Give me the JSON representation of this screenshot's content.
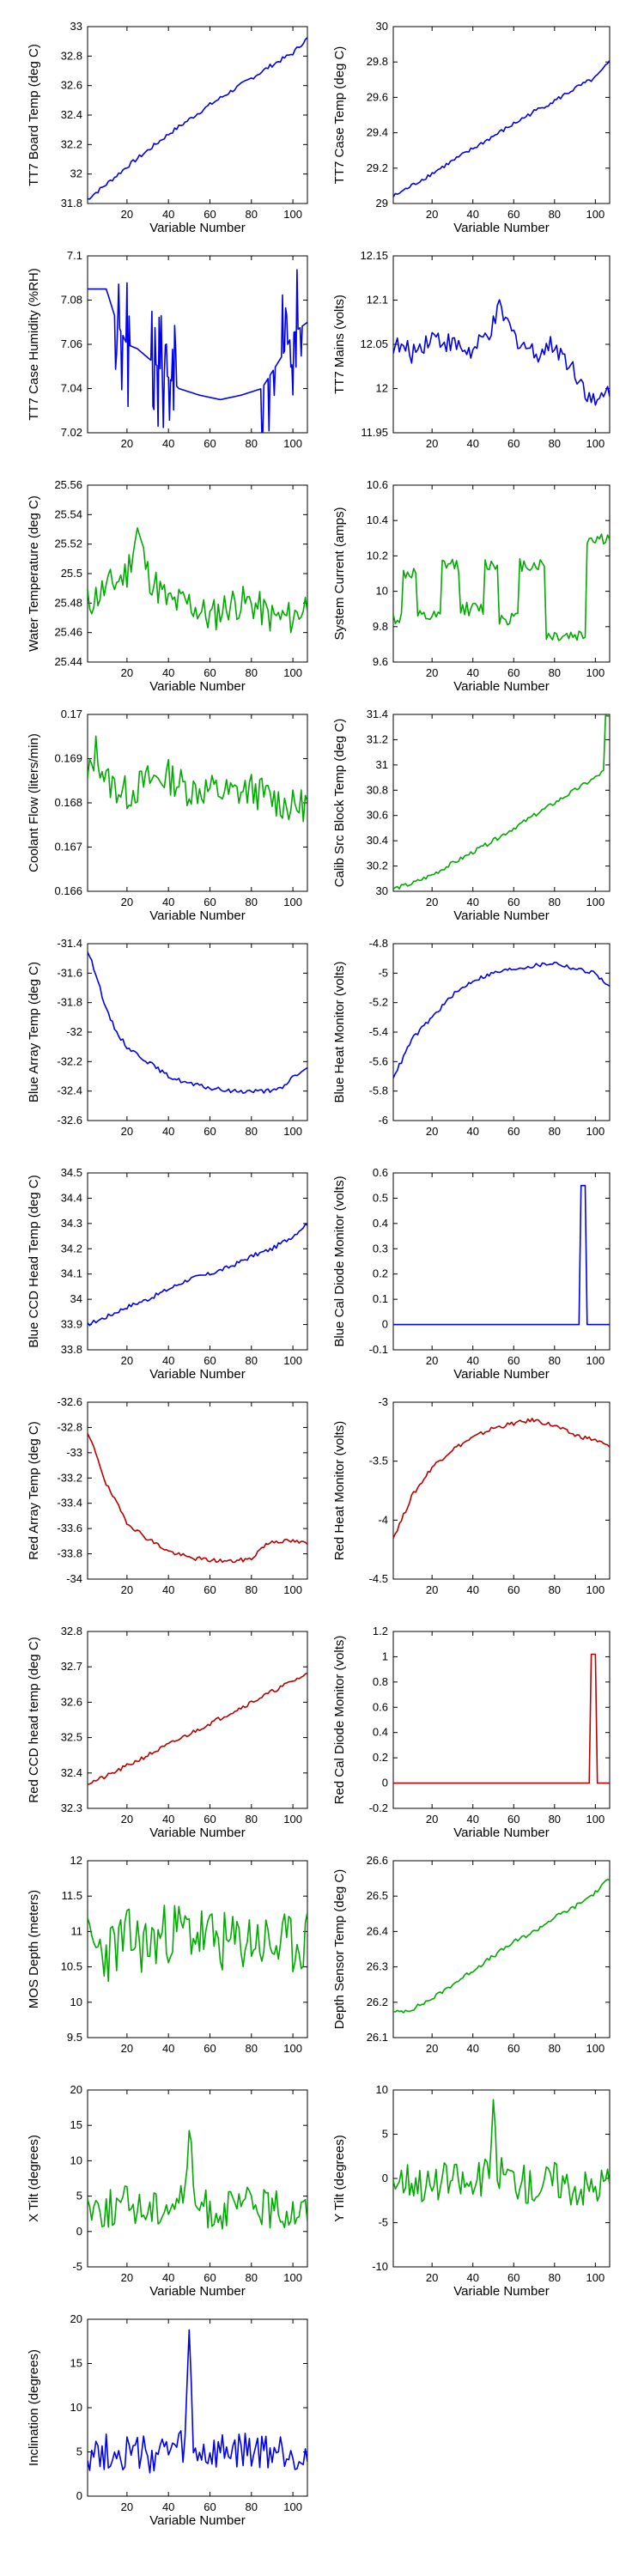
{
  "colors": {
    "blue": "#0000ee",
    "green": "#00aa00",
    "red": "#bb0000"
  },
  "chart_data": [
    {
      "type": "line",
      "xlabel": "Variable Number",
      "ylabel": "TT7 Board Temp (deg C)",
      "xlim": [
        1,
        107
      ],
      "ylim": [
        31.8,
        33
      ],
      "xticks": [
        20,
        40,
        60,
        80,
        100
      ],
      "yticks": [
        31.8,
        32,
        32.2,
        32.4,
        32.6,
        32.8,
        33
      ],
      "color": "blue",
      "grid": false,
      "shape": "trend",
      "x": [
        1,
        10,
        20,
        30,
        40,
        50,
        60,
        70,
        80,
        90,
        100,
        104,
        107
      ],
      "y": [
        31.83,
        31.93,
        32.05,
        32.16,
        32.27,
        32.37,
        32.47,
        32.56,
        32.65,
        32.74,
        32.82,
        32.88,
        32.92
      ]
    },
    {
      "type": "line",
      "xlabel": "Variable Number",
      "ylabel": "TT7 Case Temp (deg C)",
      "xlim": [
        1,
        107
      ],
      "ylim": [
        29,
        30
      ],
      "xticks": [
        20,
        40,
        60,
        80,
        100
      ],
      "yticks": [
        29,
        29.2,
        29.4,
        29.6,
        29.8,
        30
      ],
      "color": "blue",
      "grid": false,
      "shape": "trend",
      "x": [
        1,
        10,
        20,
        30,
        40,
        50,
        60,
        70,
        80,
        90,
        100,
        104,
        107
      ],
      "y": [
        29.04,
        29.1,
        29.17,
        29.24,
        29.31,
        29.38,
        29.45,
        29.52,
        29.58,
        29.65,
        29.71,
        29.76,
        29.8
      ]
    },
    {
      "type": "line",
      "xlabel": "",
      "ylabel": "TT7 Case Humidity (%RH)",
      "xlim": [
        1,
        107
      ],
      "ylim": [
        7.02,
        7.1
      ],
      "xticks": [
        20,
        40,
        60,
        80,
        100
      ],
      "yticks": [
        7.02,
        7.04,
        7.06,
        7.08,
        7.1
      ],
      "color": "blue",
      "grid": false,
      "shape": "humidity",
      "x": [
        1,
        10,
        15,
        20,
        25,
        35,
        45,
        55,
        65,
        75,
        85,
        95,
        100,
        107
      ],
      "y": [
        7.085,
        7.085,
        7.07,
        7.06,
        7.058,
        7.05,
        7.04,
        7.037,
        7.035,
        7.037,
        7.04,
        7.055,
        7.065,
        7.07
      ]
    },
    {
      "type": "line",
      "xlabel": "",
      "ylabel": "TT7 Mains  (volts)",
      "xlim": [
        1,
        107
      ],
      "ylim": [
        11.95,
        12.15
      ],
      "xticks": [
        20,
        40,
        60,
        80,
        100
      ],
      "yticks": [
        11.95,
        12,
        12.05,
        12.1,
        12.15
      ],
      "color": "blue",
      "grid": false,
      "shape": "noise",
      "x": [
        1,
        10,
        20,
        30,
        40,
        50,
        53,
        60,
        70,
        80,
        90,
        100,
        107
      ],
      "y": [
        12.05,
        12.04,
        12.06,
        12.05,
        12.04,
        12.07,
        12.09,
        12.06,
        12.04,
        12.05,
        12.02,
        11.98,
        12.0
      ],
      "noise": 0.012
    },
    {
      "type": "line",
      "xlabel": "Variable Number",
      "ylabel": "Water Temperature (deg C)",
      "xlim": [
        1,
        107
      ],
      "ylim": [
        25.44,
        25.56
      ],
      "xticks": [
        20,
        40,
        60,
        80,
        100
      ],
      "yticks": [
        25.44,
        25.46,
        25.48,
        25.5,
        25.52,
        25.54,
        25.56
      ],
      "color": "green",
      "grid": false,
      "shape": "noise",
      "x": [
        1,
        10,
        20,
        25,
        30,
        40,
        50,
        60,
        70,
        80,
        90,
        100,
        107
      ],
      "y": [
        25.48,
        25.49,
        25.5,
        25.53,
        25.5,
        25.48,
        25.48,
        25.47,
        25.48,
        25.48,
        25.47,
        25.47,
        25.48
      ],
      "noise": 0.012
    },
    {
      "type": "line",
      "xlabel": "Variable Number",
      "ylabel": "System Current (amps)",
      "xlim": [
        1,
        107
      ],
      "ylim": [
        9.6,
        10.6
      ],
      "xticks": [
        20,
        40,
        60,
        80,
        100
      ],
      "yticks": [
        9.6,
        9.8,
        10,
        10.2,
        10.4,
        10.6
      ],
      "color": "green",
      "grid": false,
      "shape": "square",
      "x": [
        1,
        5,
        6,
        12,
        13,
        24,
        25,
        33,
        34,
        45,
        46,
        52,
        53,
        62,
        63,
        75,
        76,
        95,
        96,
        107
      ],
      "y": [
        9.85,
        9.85,
        10.1,
        10.1,
        9.85,
        9.85,
        10.15,
        10.15,
        9.9,
        9.9,
        10.15,
        10.15,
        9.85,
        9.85,
        10.15,
        10.15,
        9.75,
        9.75,
        10.3,
        10.3
      ],
      "noise": 0.04
    },
    {
      "type": "line",
      "xlabel": "Variable Number",
      "ylabel": "Coolant Flow (liters/min)",
      "xlim": [
        1,
        107
      ],
      "ylim": [
        0.166,
        0.17
      ],
      "xticks": [
        20,
        40,
        60,
        80,
        100
      ],
      "yticks": [
        0.166,
        0.167,
        0.168,
        0.169,
        0.17
      ],
      "color": "green",
      "grid": false,
      "shape": "noise",
      "x": [
        1,
        5,
        10,
        20,
        30,
        40,
        50,
        60,
        70,
        80,
        90,
        100,
        107
      ],
      "y": [
        0.1685,
        0.1692,
        0.1685,
        0.1682,
        0.1685,
        0.1686,
        0.1683,
        0.1683,
        0.1682,
        0.1683,
        0.1681,
        0.1679,
        0.168
      ],
      "noise": 0.0004
    },
    {
      "type": "line",
      "xlabel": "Variable Number",
      "ylabel": "Calib Src Block Temp (deg C)",
      "xlim": [
        1,
        107
      ],
      "ylim": [
        30,
        31.4
      ],
      "xticks": [
        20,
        40,
        60,
        80,
        100
      ],
      "yticks": [
        30,
        30.2,
        30.4,
        30.6,
        30.8,
        31,
        31.2,
        31.4
      ],
      "color": "green",
      "grid": false,
      "shape": "trend",
      "x": [
        1,
        10,
        20,
        30,
        40,
        50,
        60,
        70,
        80,
        90,
        100,
        104,
        105,
        107
      ],
      "y": [
        30.02,
        30.06,
        30.13,
        30.22,
        30.31,
        30.4,
        30.5,
        30.6,
        30.7,
        30.8,
        30.9,
        30.95,
        31.38,
        31.38
      ]
    },
    {
      "type": "line",
      "xlabel": "",
      "ylabel": "Blue Array Temp (deg C)",
      "xlim": [
        1,
        107
      ],
      "ylim": [
        -32.6,
        -31.4
      ],
      "xticks": [
        20,
        40,
        60,
        80,
        100
      ],
      "yticks": [
        -32.6,
        -32.4,
        -32.2,
        -32,
        -31.8,
        -31.6,
        -31.4
      ],
      "color": "blue",
      "grid": false,
      "shape": "trend",
      "x": [
        1,
        5,
        10,
        15,
        20,
        25,
        30,
        40,
        50,
        60,
        70,
        80,
        90,
        95,
        100,
        107
      ],
      "y": [
        -31.45,
        -31.6,
        -31.85,
        -32.0,
        -32.1,
        -32.15,
        -32.2,
        -32.3,
        -32.35,
        -32.38,
        -32.4,
        -32.4,
        -32.4,
        -32.38,
        -32.3,
        -32.25
      ]
    },
    {
      "type": "line",
      "xlabel": "",
      "ylabel": "Blue Heat Monitor (volts)",
      "xlim": [
        1,
        107
      ],
      "ylim": [
        -6,
        -4.8
      ],
      "xticks": [
        20,
        40,
        60,
        80,
        100
      ],
      "yticks": [
        -6,
        -5.8,
        -5.6,
        -5.4,
        -5.2,
        -5,
        -4.8
      ],
      "color": "blue",
      "grid": false,
      "shape": "trend",
      "x": [
        1,
        5,
        10,
        20,
        30,
        40,
        50,
        60,
        70,
        80,
        90,
        100,
        107
      ],
      "y": [
        -5.7,
        -5.6,
        -5.45,
        -5.3,
        -5.15,
        -5.05,
        -5.0,
        -4.97,
        -4.95,
        -4.93,
        -4.97,
        -5.0,
        -5.1
      ]
    },
    {
      "type": "line",
      "xlabel": "Variable Number",
      "ylabel": "Blue CCD Head Temp (deg C)",
      "xlim": [
        1,
        107
      ],
      "ylim": [
        33.8,
        34.5
      ],
      "xticks": [
        20,
        40,
        60,
        80,
        100
      ],
      "yticks": [
        33.8,
        33.9,
        34,
        34.1,
        34.2,
        34.3,
        34.4,
        34.5
      ],
      "color": "blue",
      "grid": false,
      "shape": "trend",
      "x": [
        1,
        10,
        20,
        30,
        40,
        50,
        60,
        70,
        80,
        90,
        100,
        104,
        107
      ],
      "y": [
        33.9,
        33.93,
        33.97,
        34.0,
        34.04,
        34.08,
        34.1,
        34.13,
        34.17,
        34.2,
        34.25,
        34.28,
        34.3
      ]
    },
    {
      "type": "line",
      "xlabel": "Variable Number",
      "ylabel": "Blue Cal Diode Monitor (volts)",
      "xlim": [
        1,
        107
      ],
      "ylim": [
        -0.1,
        0.6
      ],
      "xticks": [
        20,
        40,
        60,
        80,
        100
      ],
      "yticks": [
        -0.1,
        0,
        0.1,
        0.2,
        0.3,
        0.4,
        0.5,
        0.6
      ],
      "color": "blue",
      "grid": false,
      "shape": "spike",
      "x": [
        1,
        92,
        93,
        95,
        96,
        107
      ],
      "y": [
        0,
        0,
        0.55,
        0.55,
        0,
        0
      ]
    },
    {
      "type": "line",
      "xlabel": "",
      "ylabel": "Red Array Temp (deg C)",
      "xlim": [
        1,
        107
      ],
      "ylim": [
        -34,
        -32.6
      ],
      "xticks": [
        20,
        40,
        60,
        80,
        100
      ],
      "yticks": [
        -34,
        -33.8,
        -33.6,
        -33.4,
        -33.2,
        -33,
        -32.8,
        -32.6
      ],
      "color": "red",
      "grid": false,
      "shape": "trend",
      "x": [
        1,
        5,
        10,
        15,
        20,
        25,
        30,
        40,
        50,
        60,
        70,
        80,
        85,
        90,
        100,
        107
      ],
      "y": [
        -32.85,
        -33.0,
        -33.25,
        -33.4,
        -33.55,
        -33.62,
        -33.68,
        -33.78,
        -33.83,
        -33.85,
        -33.86,
        -33.84,
        -33.75,
        -33.7,
        -33.7,
        -33.72
      ]
    },
    {
      "type": "line",
      "xlabel": "",
      "ylabel": "Red Heat Monitor (volts)",
      "xlim": [
        1,
        107
      ],
      "ylim": [
        -4.5,
        -3
      ],
      "xticks": [
        20,
        40,
        60,
        80,
        100
      ],
      "yticks": [
        -4.5,
        -4,
        -3.5,
        -3
      ],
      "color": "red",
      "grid": false,
      "shape": "trend",
      "x": [
        1,
        5,
        10,
        20,
        30,
        40,
        50,
        60,
        70,
        80,
        90,
        100,
        107
      ],
      "y": [
        -4.15,
        -4.0,
        -3.8,
        -3.55,
        -3.4,
        -3.3,
        -3.22,
        -3.18,
        -3.15,
        -3.2,
        -3.28,
        -3.32,
        -3.38
      ]
    },
    {
      "type": "line",
      "xlabel": "Variable Number",
      "ylabel": "Red CCD head temp (deg C)",
      "xlim": [
        1,
        107
      ],
      "ylim": [
        32.3,
        32.8
      ],
      "xticks": [
        20,
        40,
        60,
        80,
        100
      ],
      "yticks": [
        32.3,
        32.4,
        32.5,
        32.6,
        32.7,
        32.8
      ],
      "color": "red",
      "grid": false,
      "shape": "trend",
      "x": [
        1,
        10,
        20,
        30,
        40,
        50,
        60,
        70,
        80,
        90,
        100,
        107
      ],
      "y": [
        32.37,
        32.39,
        32.42,
        32.45,
        32.48,
        32.51,
        32.54,
        32.57,
        32.6,
        32.63,
        32.66,
        32.68
      ]
    },
    {
      "type": "line",
      "xlabel": "Variable Number",
      "ylabel": "Red Cal Diode Monitor (volts)",
      "xlim": [
        1,
        107
      ],
      "ylim": [
        -0.2,
        1.2
      ],
      "xticks": [
        20,
        40,
        60,
        80,
        100
      ],
      "yticks": [
        -0.2,
        0,
        0.2,
        0.4,
        0.6,
        0.8,
        1,
        1.2
      ],
      "color": "red",
      "grid": false,
      "shape": "spike",
      "x": [
        1,
        97,
        98,
        100,
        101,
        107
      ],
      "y": [
        0,
        0,
        1.02,
        1.02,
        0,
        0
      ]
    },
    {
      "type": "line",
      "xlabel": "",
      "ylabel": "MOS Depth  (meters)",
      "xlim": [
        1,
        107
      ],
      "ylim": [
        9.5,
        12
      ],
      "xticks": [
        20,
        40,
        60,
        80,
        100
      ],
      "yticks": [
        9.5,
        10,
        10.5,
        11,
        11.5,
        12
      ],
      "color": "green",
      "grid": false,
      "shape": "noise",
      "x": [
        1,
        10,
        20,
        30,
        40,
        50,
        60,
        70,
        80,
        90,
        100,
        107
      ],
      "y": [
        10.8,
        10.7,
        10.9,
        10.8,
        11.0,
        11.0,
        10.9,
        10.8,
        10.9,
        10.8,
        10.8,
        10.9
      ],
      "noise": 0.45
    },
    {
      "type": "line",
      "xlabel": "",
      "ylabel": "Depth Sensor Temp (deg C)",
      "xlim": [
        1,
        107
      ],
      "ylim": [
        26.1,
        26.6
      ],
      "xticks": [
        20,
        40,
        60,
        80,
        100
      ],
      "yticks": [
        26.1,
        26.2,
        26.3,
        26.4,
        26.5,
        26.6
      ],
      "color": "green",
      "grid": false,
      "shape": "trend",
      "x": [
        1,
        10,
        20,
        30,
        40,
        50,
        60,
        70,
        80,
        90,
        100,
        107
      ],
      "y": [
        26.17,
        26.18,
        26.21,
        26.25,
        26.29,
        26.33,
        26.37,
        26.4,
        26.44,
        26.47,
        26.51,
        26.55
      ]
    },
    {
      "type": "line",
      "xlabel": "Variable Number",
      "ylabel": "X Tilt  (degrees)",
      "xlim": [
        1,
        107
      ],
      "ylim": [
        -5,
        20
      ],
      "xticks": [
        20,
        40,
        60,
        80,
        100
      ],
      "yticks": [
        -5,
        0,
        5,
        10,
        15,
        20
      ],
      "color": "green",
      "grid": false,
      "shape": "noise",
      "x": [
        1,
        10,
        20,
        30,
        40,
        48,
        50,
        52,
        60,
        70,
        80,
        90,
        100,
        107
      ],
      "y": [
        4,
        3,
        4,
        3,
        4,
        5,
        16,
        4,
        3,
        3,
        4,
        3,
        3,
        3
      ],
      "noise": 2.8
    },
    {
      "type": "line",
      "xlabel": "Variable Number",
      "ylabel": "Y Tilt  (degrees)",
      "xlim": [
        1,
        107
      ],
      "ylim": [
        -10,
        10
      ],
      "xticks": [
        20,
        40,
        60,
        80,
        100
      ],
      "yticks": [
        -10,
        -5,
        0,
        5,
        10
      ],
      "color": "green",
      "grid": false,
      "shape": "noise",
      "x": [
        1,
        10,
        20,
        30,
        40,
        48,
        50,
        52,
        60,
        70,
        80,
        90,
        100,
        107
      ],
      "y": [
        0,
        0,
        -1,
        0,
        -1,
        1,
        7,
        1,
        0,
        -1,
        0,
        -1,
        -1,
        0
      ],
      "noise": 2.2
    },
    {
      "type": "line",
      "xlabel": "Variable Number",
      "ylabel": "Inclination  (degrees)",
      "xlim": [
        1,
        107
      ],
      "ylim": [
        0,
        20
      ],
      "xticks": [
        20,
        40,
        60,
        80,
        100
      ],
      "yticks": [
        0,
        5,
        10,
        15,
        20
      ],
      "color": "blue",
      "grid": false,
      "shape": "noise",
      "x": [
        1,
        10,
        20,
        30,
        40,
        48,
        50,
        52,
        60,
        70,
        80,
        90,
        100,
        107
      ],
      "y": [
        5,
        5,
        5,
        4.5,
        5,
        5.5,
        18,
        5,
        4.5,
        5,
        5,
        5,
        5,
        4
      ],
      "noise": 2.2
    }
  ]
}
